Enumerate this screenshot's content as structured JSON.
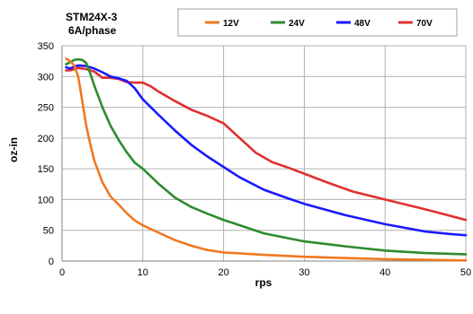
{
  "chart_data": {
    "type": "line",
    "title": [
      "STM24X-3",
      "6A/phase"
    ],
    "xlabel": "rps",
    "ylabel": "oz-in",
    "xlim": [
      0,
      50
    ],
    "ylim": [
      0,
      350
    ],
    "xticks": [
      0,
      10,
      20,
      30,
      40,
      50
    ],
    "yticks": [
      0,
      50,
      100,
      150,
      200,
      250,
      300,
      350
    ],
    "grid": true,
    "legend_position": "top",
    "series": [
      {
        "name": "12V",
        "color": "#f07820",
        "points": [
          [
            0.5,
            329
          ],
          [
            1.0,
            325
          ],
          [
            1.5,
            318
          ],
          [
            2.0,
            300
          ],
          [
            2.5,
            260
          ],
          [
            3.0,
            220
          ],
          [
            3.5,
            190
          ],
          [
            4.0,
            163
          ],
          [
            5.0,
            128
          ],
          [
            6.0,
            105
          ],
          [
            7.0,
            92
          ],
          [
            8.0,
            78
          ],
          [
            9.0,
            66
          ],
          [
            10.0,
            58
          ],
          [
            12.0,
            46
          ],
          [
            14.0,
            34
          ],
          [
            16.0,
            25
          ],
          [
            18.0,
            18
          ],
          [
            20.0,
            14
          ],
          [
            25.0,
            10
          ],
          [
            30.0,
            7
          ],
          [
            35.0,
            5
          ],
          [
            40.0,
            3
          ],
          [
            45.0,
            2
          ],
          [
            50.0,
            1
          ]
        ]
      },
      {
        "name": "24V",
        "color": "#2e8b2e",
        "points": [
          [
            0.5,
            320
          ],
          [
            1.0,
            323
          ],
          [
            1.5,
            327
          ],
          [
            2.0,
            328
          ],
          [
            2.5,
            327
          ],
          [
            3.0,
            322
          ],
          [
            3.5,
            305
          ],
          [
            4.0,
            285
          ],
          [
            5.0,
            250
          ],
          [
            6.0,
            220
          ],
          [
            7.0,
            197
          ],
          [
            8.0,
            177
          ],
          [
            9.0,
            160
          ],
          [
            10.0,
            150
          ],
          [
            12.0,
            125
          ],
          [
            14.0,
            103
          ],
          [
            16.0,
            88
          ],
          [
            18.0,
            77
          ],
          [
            20.0,
            67
          ],
          [
            25.0,
            45
          ],
          [
            30.0,
            32
          ],
          [
            35.0,
            24
          ],
          [
            40.0,
            17
          ],
          [
            45.0,
            13
          ],
          [
            50.0,
            11
          ]
        ]
      },
      {
        "name": "48V",
        "color": "#1a1aff",
        "points": [
          [
            0.5,
            315
          ],
          [
            1.0,
            313
          ],
          [
            1.5,
            316
          ],
          [
            2.0,
            318
          ],
          [
            3.0,
            317
          ],
          [
            4.0,
            313
          ],
          [
            5.0,
            307
          ],
          [
            6.0,
            300
          ],
          [
            7.0,
            297
          ],
          [
            8.0,
            293
          ],
          [
            9.0,
            281
          ],
          [
            10.0,
            263
          ],
          [
            12.0,
            237
          ],
          [
            14.0,
            212
          ],
          [
            16.0,
            189
          ],
          [
            18.0,
            170
          ],
          [
            20.0,
            153
          ],
          [
            22.0,
            136
          ],
          [
            25.0,
            116
          ],
          [
            28.0,
            102
          ],
          [
            30.0,
            93
          ],
          [
            35.0,
            75
          ],
          [
            40.0,
            60
          ],
          [
            45.0,
            48
          ],
          [
            48.0,
            44
          ],
          [
            50.0,
            42
          ]
        ]
      },
      {
        "name": "70V",
        "color": "#e03030",
        "points": [
          [
            0.5,
            310
          ],
          [
            1.0,
            310
          ],
          [
            1.5,
            312
          ],
          [
            2.0,
            314
          ],
          [
            3.0,
            312
          ],
          [
            4.0,
            308
          ],
          [
            5.0,
            298
          ],
          [
            6.0,
            298
          ],
          [
            7.0,
            296
          ],
          [
            8.0,
            291
          ],
          [
            9.0,
            290
          ],
          [
            10.0,
            290
          ],
          [
            11.0,
            284
          ],
          [
            12.0,
            275
          ],
          [
            14.0,
            260
          ],
          [
            16.0,
            246
          ],
          [
            18.0,
            236
          ],
          [
            20.0,
            224
          ],
          [
            22.0,
            200
          ],
          [
            24.0,
            176
          ],
          [
            26.0,
            161
          ],
          [
            28.0,
            152
          ],
          [
            30.0,
            142
          ],
          [
            33.0,
            127
          ],
          [
            36.0,
            113
          ],
          [
            40.0,
            100
          ],
          [
            45.0,
            84
          ],
          [
            50.0,
            67
          ]
        ]
      }
    ]
  }
}
